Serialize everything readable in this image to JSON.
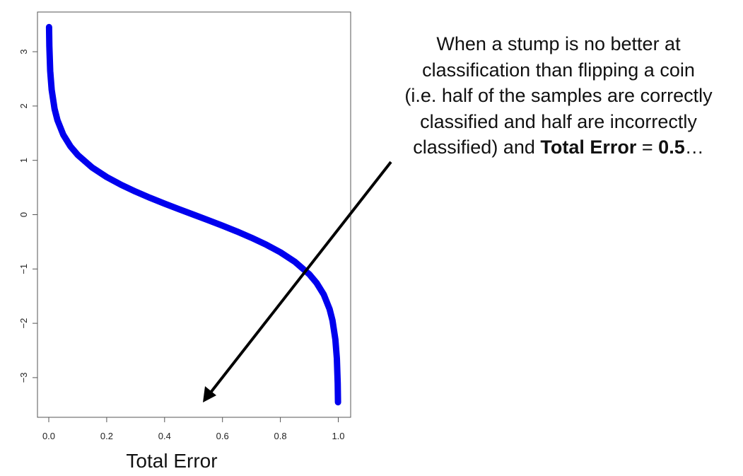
{
  "chart_data": {
    "type": "line",
    "title": "",
    "xlabel": "Total Error",
    "ylabel": "",
    "xlim": [
      -0.05,
      1.04
    ],
    "ylim": [
      -3.75,
      3.73
    ],
    "xticks": [
      "0.0",
      "0.2",
      "0.4",
      "0.6",
      "0.8",
      "1.0"
    ],
    "yticks": [
      "3",
      "2",
      "1",
      "0",
      "-1",
      "-2",
      "-3"
    ],
    "grid": false,
    "series": [
      {
        "color": "#0000ee",
        "x": [
          0.001,
          0.002,
          0.005,
          0.01,
          0.02,
          0.03,
          0.05,
          0.075,
          0.1,
          0.15,
          0.2,
          0.25,
          0.3,
          0.35,
          0.4,
          0.45,
          0.5,
          0.55,
          0.6,
          0.65,
          0.7,
          0.75,
          0.8,
          0.85,
          0.9,
          0.925,
          0.95,
          0.97,
          0.98,
          0.99,
          0.995,
          0.998,
          0.999
        ],
        "y": [
          3.453,
          3.106,
          2.647,
          2.298,
          1.946,
          1.738,
          1.472,
          1.256,
          1.099,
          0.867,
          0.693,
          0.549,
          0.424,
          0.31,
          0.203,
          0.1,
          0,
          -0.1,
          -0.203,
          -0.31,
          -0.424,
          -0.549,
          -0.693,
          -0.867,
          -1.099,
          -1.256,
          -1.472,
          -1.738,
          -1.946,
          -2.298,
          -2.647,
          -3.106,
          -3.453
        ]
      }
    ],
    "annotation": {
      "line1": "When a stump is no better at",
      "line2": "classification than flipping a coin",
      "line3": "(i.e. half of the samples are correctly",
      "line4": "classified and half are incorrectly",
      "line5_pre": "classified) and ",
      "line5_bold1": "Total Error",
      "line5_mid": " = ",
      "line5_bold2": "0.5",
      "line5_post": "…",
      "arrow_color": "#000000"
    }
  }
}
